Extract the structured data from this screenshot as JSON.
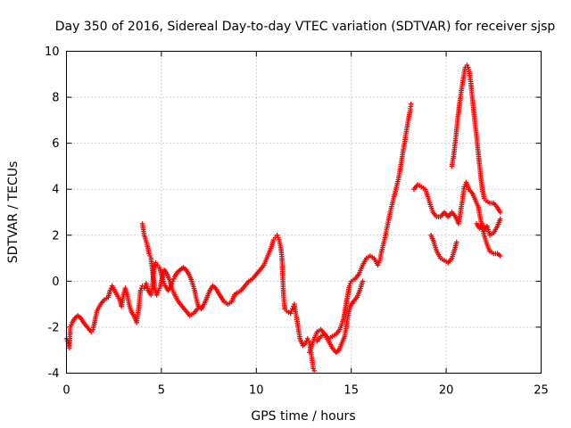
{
  "chart_data": {
    "type": "scatter",
    "title": "Day 350 of 2016, Sidereal Day-to-day VTEC variation (SDTVAR) for receiver sjsp",
    "xlabel": "GPS time / hours",
    "ylabel": "SDTVAR / TECUs",
    "xlim": [
      0,
      25
    ],
    "ylim": [
      -4,
      10
    ],
    "x_ticks": [
      "0",
      "5",
      "10",
      "15",
      "20",
      "25"
    ],
    "y_ticks": [
      "-4",
      "-2",
      "0",
      "2",
      "4",
      "6",
      "8",
      "10"
    ],
    "x_tick_values": [
      0,
      5,
      10,
      15,
      20,
      25
    ],
    "y_tick_values": [
      -4,
      -2,
      0,
      2,
      4,
      6,
      8,
      10
    ],
    "grid": true,
    "marker": "+",
    "color": "#ff0000",
    "series": [
      {
        "points": [
          [
            0.0,
            -2.5
          ],
          [
            0.1,
            -2.7
          ],
          [
            0.15,
            -2.9
          ],
          [
            0.2,
            -2.0
          ],
          [
            0.3,
            -1.8
          ],
          [
            0.45,
            -1.6
          ],
          [
            0.6,
            -1.5
          ],
          [
            0.75,
            -1.6
          ],
          [
            0.9,
            -1.8
          ],
          [
            1.1,
            -2.0
          ],
          [
            1.3,
            -2.2
          ],
          [
            1.4,
            -2.1
          ],
          [
            1.5,
            -1.7
          ],
          [
            1.6,
            -1.3
          ],
          [
            1.8,
            -1.0
          ],
          [
            2.0,
            -0.8
          ],
          [
            2.2,
            -0.7
          ],
          [
            2.3,
            -0.4
          ],
          [
            2.4,
            -0.2
          ],
          [
            2.6,
            -0.5
          ],
          [
            2.8,
            -0.8
          ],
          [
            2.9,
            -1.1
          ],
          [
            3.0,
            -0.6
          ],
          [
            3.1,
            -0.3
          ],
          [
            3.2,
            -0.6
          ],
          [
            3.3,
            -1.0
          ],
          [
            3.4,
            -1.3
          ],
          [
            3.55,
            -1.5
          ],
          [
            3.7,
            -1.8
          ],
          [
            3.8,
            -1.2
          ],
          [
            3.85,
            -0.8
          ],
          [
            3.9,
            -0.4
          ],
          [
            4.0,
            -0.2
          ],
          [
            4.1,
            -0.3
          ],
          [
            4.2,
            -0.1
          ],
          [
            4.3,
            -0.4
          ],
          [
            4.45,
            -0.6
          ],
          [
            4.55,
            0.0
          ],
          [
            4.6,
            0.5
          ],
          [
            4.7,
            0.8
          ],
          [
            4.8,
            0.7
          ],
          [
            4.9,
            0.6
          ],
          [
            5.0,
            0.3
          ],
          [
            5.1,
            0.0
          ],
          [
            5.2,
            -0.2
          ],
          [
            5.35,
            -0.4
          ],
          [
            5.5,
            -0.2
          ],
          [
            5.6,
            0.0
          ],
          [
            5.7,
            0.2
          ],
          [
            5.85,
            0.4
          ],
          [
            6.0,
            0.5
          ],
          [
            6.15,
            0.6
          ],
          [
            6.3,
            0.5
          ],
          [
            6.45,
            0.3
          ],
          [
            6.6,
            0.0
          ],
          [
            6.75,
            -0.4
          ],
          [
            6.85,
            -0.8
          ],
          [
            6.95,
            -1.1
          ],
          [
            7.1,
            -1.2
          ],
          [
            7.25,
            -1.0
          ],
          [
            7.4,
            -0.7
          ],
          [
            7.55,
            -0.4
          ],
          [
            7.7,
            -0.2
          ],
          [
            7.85,
            -0.3
          ],
          [
            8.0,
            -0.5
          ],
          [
            8.15,
            -0.7
          ],
          [
            8.3,
            -0.9
          ],
          [
            8.5,
            -1.0
          ],
          [
            8.7,
            -0.9
          ],
          [
            8.85,
            -0.6
          ],
          [
            9.0,
            -0.5
          ],
          [
            9.2,
            -0.4
          ],
          [
            9.4,
            -0.2
          ],
          [
            9.6,
            0.0
          ],
          [
            9.8,
            0.1
          ],
          [
            10.0,
            0.3
          ],
          [
            10.2,
            0.5
          ],
          [
            10.4,
            0.7
          ],
          [
            10.6,
            1.1
          ],
          [
            10.8,
            1.5
          ],
          [
            10.9,
            1.8
          ],
          [
            11.0,
            1.9
          ],
          [
            11.1,
            2.0
          ],
          [
            11.2,
            1.8
          ],
          [
            11.3,
            1.4
          ],
          [
            11.35,
            1.0
          ],
          [
            11.4,
            0.0
          ],
          [
            11.45,
            -0.8
          ],
          [
            11.5,
            -1.2
          ],
          [
            11.6,
            -1.3
          ],
          [
            11.8,
            -1.4
          ],
          [
            11.9,
            -1.2
          ],
          [
            12.0,
            -1.0
          ],
          [
            12.1,
            -1.5
          ],
          [
            12.2,
            -2.0
          ],
          [
            12.3,
            -2.5
          ],
          [
            12.45,
            -2.8
          ],
          [
            12.6,
            -2.7
          ],
          [
            12.7,
            -2.5
          ],
          [
            12.8,
            -2.7
          ],
          [
            12.9,
            -3.2
          ],
          [
            13.0,
            -3.8
          ],
          [
            13.05,
            -3.9
          ],
          [
            13.2,
            -2.6
          ],
          [
            13.4,
            -2.4
          ],
          [
            13.6,
            -2.3
          ],
          [
            13.8,
            -2.5
          ],
          [
            14.0,
            -2.4
          ],
          [
            14.2,
            -2.3
          ],
          [
            14.4,
            -2.1
          ],
          [
            14.6,
            -1.6
          ],
          [
            14.75,
            -0.9
          ],
          [
            14.9,
            -0.2
          ],
          [
            15.0,
            0.0
          ],
          [
            15.2,
            0.1
          ],
          [
            15.4,
            0.3
          ],
          [
            15.6,
            0.7
          ],
          [
            15.8,
            1.0
          ],
          [
            16.0,
            1.1
          ],
          [
            16.2,
            1.0
          ],
          [
            16.4,
            0.7
          ],
          [
            16.5,
            0.9
          ],
          [
            16.6,
            1.3
          ],
          [
            16.75,
            1.8
          ],
          [
            16.9,
            2.4
          ],
          [
            17.05,
            3.0
          ],
          [
            17.2,
            3.5
          ],
          [
            17.35,
            4.0
          ],
          [
            17.5,
            4.5
          ],
          [
            17.6,
            5.0
          ],
          [
            17.7,
            5.5
          ],
          [
            17.8,
            6.0
          ],
          [
            17.9,
            6.5
          ],
          [
            18.0,
            7.0
          ],
          [
            18.1,
            7.4
          ],
          [
            18.15,
            7.7
          ],
          [
            4.0,
            2.5
          ],
          [
            4.1,
            2.0
          ],
          [
            4.25,
            1.6
          ],
          [
            4.35,
            1.2
          ],
          [
            4.45,
            1.0
          ],
          [
            4.55,
            0.3
          ],
          [
            4.65,
            -0.3
          ],
          [
            4.75,
            -0.6
          ],
          [
            4.85,
            -0.4
          ],
          [
            4.95,
            -0.2
          ],
          [
            5.05,
            0.2
          ],
          [
            5.15,
            0.5
          ],
          [
            5.3,
            0.3
          ],
          [
            5.45,
            0.0
          ],
          [
            5.55,
            -0.3
          ],
          [
            5.7,
            -0.6
          ],
          [
            5.9,
            -0.9
          ],
          [
            6.1,
            -1.1
          ],
          [
            6.3,
            -1.3
          ],
          [
            6.5,
            -1.5
          ],
          [
            6.7,
            -1.4
          ],
          [
            6.9,
            -1.2
          ],
          [
            12.8,
            -3.1
          ],
          [
            13.0,
            -2.6
          ],
          [
            13.2,
            -2.2
          ],
          [
            13.4,
            -2.1
          ],
          [
            13.6,
            -2.3
          ],
          [
            13.8,
            -2.6
          ],
          [
            14.0,
            -2.9
          ],
          [
            14.2,
            -3.1
          ],
          [
            14.35,
            -3.0
          ],
          [
            14.5,
            -2.7
          ],
          [
            14.65,
            -2.4
          ],
          [
            14.75,
            -1.9
          ],
          [
            14.85,
            -1.4
          ],
          [
            14.95,
            -1.1
          ],
          [
            15.1,
            -0.9
          ],
          [
            15.3,
            -0.7
          ],
          [
            15.45,
            -0.4
          ],
          [
            15.6,
            0.0
          ],
          [
            18.3,
            4.0
          ],
          [
            18.5,
            4.2
          ],
          [
            18.7,
            4.1
          ],
          [
            18.9,
            4.0
          ],
          [
            19.1,
            3.5
          ],
          [
            19.3,
            3.0
          ],
          [
            19.5,
            2.8
          ],
          [
            19.7,
            2.8
          ],
          [
            19.9,
            3.0
          ],
          [
            20.1,
            2.8
          ],
          [
            20.3,
            3.0
          ],
          [
            20.5,
            2.8
          ],
          [
            20.65,
            2.5
          ],
          [
            20.75,
            3.0
          ],
          [
            20.85,
            3.5
          ],
          [
            20.95,
            4.1
          ],
          [
            21.05,
            4.3
          ],
          [
            21.2,
            4.0
          ],
          [
            21.4,
            3.8
          ],
          [
            21.55,
            3.5
          ],
          [
            21.7,
            3.2
          ],
          [
            21.85,
            2.5
          ],
          [
            22.0,
            2.0
          ],
          [
            22.15,
            1.6
          ],
          [
            22.3,
            1.3
          ],
          [
            22.5,
            1.2
          ],
          [
            22.7,
            1.2
          ],
          [
            22.85,
            1.1
          ],
          [
            19.2,
            2.0
          ],
          [
            19.35,
            1.7
          ],
          [
            19.5,
            1.3
          ],
          [
            19.7,
            1.0
          ],
          [
            19.9,
            0.9
          ],
          [
            20.1,
            0.8
          ],
          [
            20.3,
            1.0
          ],
          [
            20.45,
            1.4
          ],
          [
            20.55,
            1.7
          ],
          [
            20.3,
            5.0
          ],
          [
            20.4,
            5.5
          ],
          [
            20.5,
            6.2
          ],
          [
            20.6,
            7.0
          ],
          [
            20.7,
            7.7
          ],
          [
            20.8,
            8.3
          ],
          [
            20.9,
            8.8
          ],
          [
            21.0,
            9.3
          ],
          [
            21.1,
            9.4
          ],
          [
            21.2,
            9.2
          ],
          [
            21.3,
            8.6
          ],
          [
            21.4,
            7.8
          ],
          [
            21.5,
            7.0
          ],
          [
            21.6,
            6.3
          ],
          [
            21.7,
            5.5
          ],
          [
            21.8,
            4.7
          ],
          [
            21.9,
            4.0
          ],
          [
            22.0,
            3.6
          ],
          [
            22.1,
            3.5
          ],
          [
            22.3,
            3.4
          ],
          [
            22.5,
            3.4
          ],
          [
            22.7,
            3.2
          ],
          [
            22.85,
            3.0
          ],
          [
            21.6,
            2.5
          ],
          [
            21.75,
            2.3
          ],
          [
            21.9,
            2.5
          ],
          [
            22.0,
            2.2
          ],
          [
            22.15,
            2.4
          ],
          [
            22.3,
            2.0
          ],
          [
            22.5,
            2.1
          ],
          [
            22.7,
            2.4
          ],
          [
            22.85,
            2.7
          ]
        ]
      }
    ]
  }
}
